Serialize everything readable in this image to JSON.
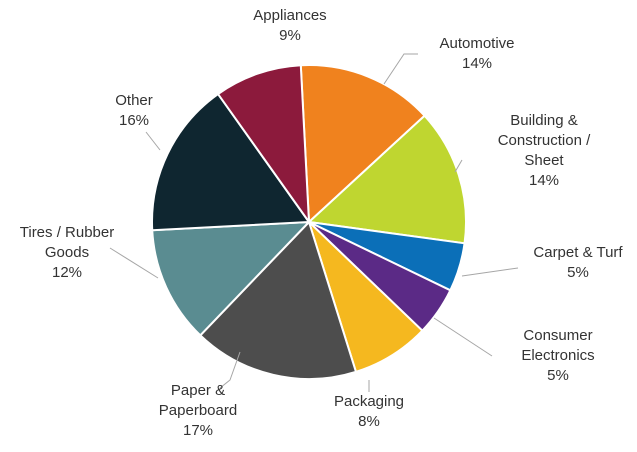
{
  "chart_data": {
    "type": "pie",
    "title": "",
    "slices": [
      {
        "label": [
          "Automotive"
        ],
        "value": 14,
        "value_label": "14%",
        "color": "#f0821e"
      },
      {
        "label": [
          "Building &",
          "Construction /",
          "Sheet"
        ],
        "value": 14,
        "value_label": "14%",
        "color": "#bfd630"
      },
      {
        "label": [
          "Carpet & Turf"
        ],
        "value": 5,
        "value_label": "5%",
        "color": "#0b6fb8"
      },
      {
        "label": [
          "Consumer",
          "Electronics"
        ],
        "value": 5,
        "value_label": "5%",
        "color": "#5b2a86"
      },
      {
        "label": [
          "Packaging"
        ],
        "value": 8,
        "value_label": "8%",
        "color": "#f5b81f"
      },
      {
        "label": [
          "Paper &",
          "Paperboard"
        ],
        "value": 17,
        "value_label": "17%",
        "color": "#4d4d4d"
      },
      {
        "label": [
          "Tires / Rubber",
          "Goods"
        ],
        "value": 12,
        "value_label": "12%",
        "color": "#5a8c91"
      },
      {
        "label": [
          "Other"
        ],
        "value": 16,
        "value_label": "16%",
        "color": "#0f2630"
      },
      {
        "label": [
          "Appliances"
        ],
        "value": 9,
        "value_label": "9%",
        "color": "#8c1a3c"
      }
    ]
  }
}
